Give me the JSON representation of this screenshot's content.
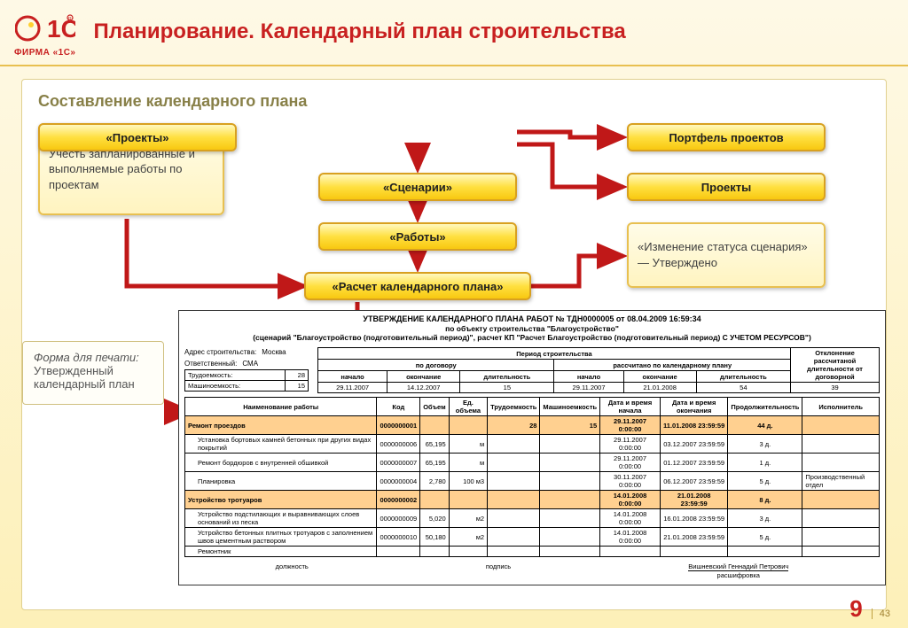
{
  "logo": {
    "brand": "ФИРМА «1С»"
  },
  "title": "Планирование. Календарный план строительства",
  "section_title": "Составление календарного плана",
  "colors": {
    "accent_red": "#c82020",
    "arrow": "#c01818",
    "box_grad_top": "#fff8c0",
    "box_grad_bot": "#f8c810",
    "box_border": "#d8a020",
    "soft_top": "#fffce8",
    "soft_bot": "#fff4c0",
    "page_bg_top": "#fef9e6",
    "page_bg_bot": "#fdf0b8"
  },
  "boxes": {
    "consider": "Учесть запланированные и выполняемые работы по проектам",
    "projects": "«Проекты»",
    "scenarios": "«Сценарии»",
    "works": "«Работы»",
    "calc": "«Расчет календарного плана»",
    "portfolio": "Портфель проектов",
    "proj_right": "Проекты",
    "status": "«Изменение статуса сценария» — Утверждено"
  },
  "print_label": {
    "line1": "Форма для печати:",
    "line2": "Утвержденный календарный план"
  },
  "doc": {
    "title": "УТВЕРЖДЕНИЕ КАЛЕНДАРНОГО ПЛАНА РАБОТ № ТДН0000005 от 08.04.2009 16:59:34",
    "sub1": "по объекту строительства \"Благоустройство\"",
    "sub2": "(сценарий \"Благоустройство (подготовительный период)\", расчет КП \"Расчет Благоустройство (подготовительный период) С УЧЕТОМ РЕСУРСОВ\")",
    "meta": {
      "addr_label": "Адрес строительства:",
      "addr": "Москва",
      "resp_label": "Ответственный:",
      "resp": "СМА"
    },
    "top_table": {
      "group1": "по договору",
      "group2": "Период строительства",
      "group2b": "рассчитано по календарному плану",
      "group3": "Отклонение рассчитаной длительности от договорной",
      "cols": [
        "начало",
        "окончание",
        "длительность",
        "начало",
        "окончание",
        "длительность"
      ],
      "rows": [
        {
          "label": "Трудоемкость:",
          "val": "28",
          "c": [
            "29.11.2007",
            "14.12.2007",
            "15",
            "29.11.2007",
            "21.01.2008",
            "54",
            "39"
          ]
        },
        {
          "label": "Машиноемкость:",
          "val": "15",
          "c": [
            "",
            "",
            "",
            "",
            "",
            "",
            ""
          ]
        }
      ]
    },
    "main_table": {
      "headers": [
        "Наименование работы",
        "Код",
        "Объем",
        "Ед. объема",
        "Трудоемкость",
        "Машиноемкость",
        "Дата и время начала",
        "Дата и время окончания",
        "Продолжительность",
        "Исполнитель"
      ],
      "rows": [
        {
          "hl": true,
          "c": [
            "Ремонт проездов",
            "0000000001",
            "",
            "",
            "28",
            "15",
            "29.11.2007 0:00:00",
            "11.01.2008 23:59:59",
            "44 д.",
            ""
          ]
        },
        {
          "hl": false,
          "c": [
            "Установка бортовых камней бетонных при других видах покрытий",
            "0000000006",
            "65,195",
            "м",
            "",
            "",
            "29.11.2007 0:00:00",
            "03.12.2007 23:59:59",
            "3 д.",
            ""
          ]
        },
        {
          "hl": false,
          "c": [
            "Ремонт бордюров с внутренней обшивкой",
            "0000000007",
            "65,195",
            "м",
            "",
            "",
            "29.11.2007 0:00:00",
            "01.12.2007 23:59:59",
            "1 д.",
            ""
          ]
        },
        {
          "hl": false,
          "c": [
            "Планировка",
            "0000000004",
            "2,780",
            "100 м3",
            "",
            "",
            "30.11.2007 0:00:00",
            "06.12.2007 23:59:59",
            "5 д.",
            "Производственный отдел"
          ]
        },
        {
          "hl": true,
          "c": [
            "Устройство тротуаров",
            "0000000002",
            "",
            "",
            "",
            "",
            "14.01.2008 0:00:00",
            "21.01.2008 23:59:59",
            "8 д.",
            ""
          ]
        },
        {
          "hl": false,
          "c": [
            "Устройство подстилающих и выравнивающих слоев оснований из песка",
            "0000000009",
            "5,020",
            "м2",
            "",
            "",
            "14.01.2008 0:00:00",
            "16.01.2008 23:59:59",
            "3 д.",
            ""
          ]
        },
        {
          "hl": false,
          "c": [
            "Устройство бетонных плитных тротуаров с заполнением швов цементным раствором",
            "0000000010",
            "50,180",
            "м2",
            "",
            "",
            "14.01.2008 0:00:00",
            "21.01.2008 23:59:59",
            "5 д.",
            ""
          ]
        },
        {
          "hl": false,
          "c": [
            "Ремонтник",
            "",
            "",
            "",
            "",
            "",
            "",
            "",
            "",
            ""
          ]
        }
      ]
    },
    "signatures": {
      "left": "должность",
      "mid": "подпись",
      "right_name": "Вишневский Геннадий Петрович",
      "right": "расшифровка"
    }
  },
  "footer": {
    "page": "9",
    "total": "43"
  }
}
